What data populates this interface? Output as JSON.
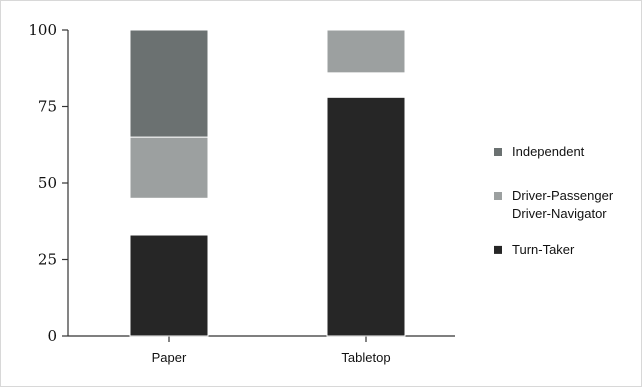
{
  "chart_data": {
    "type": "bar",
    "stacked": true,
    "categories": [
      "Paper",
      "Tabletop"
    ],
    "ylim": [
      0,
      100
    ],
    "yticks": [
      "0",
      "25",
      "50",
      "75",
      "100"
    ],
    "series": [
      {
        "name": "Turn-Taker",
        "color": "#262626",
        "values": [
          [
            0,
            33
          ],
          [
            0,
            78
          ]
        ]
      },
      {
        "name": "Driver-Passenger Driver-Navigator",
        "color": "#9ca0a0",
        "values": [
          [
            45,
            65
          ],
          [
            86,
            100
          ]
        ]
      },
      {
        "name": "Independent",
        "color": "#6b7171",
        "values": [
          [
            65,
            100
          ],
          null
        ]
      }
    ],
    "legend": {
      "position": "right",
      "items": [
        {
          "label": "Independent",
          "color": "#6b7171",
          "lines": [
            "Independent"
          ]
        },
        {
          "label": "Driver-Passenger Driver-Navigator",
          "color": "#9ca0a0",
          "lines": [
            "Driver-Passenger",
            "Driver-Navigator"
          ]
        },
        {
          "label": "Turn-Taker",
          "color": "#262626",
          "lines": [
            "Turn-Taker"
          ]
        }
      ]
    },
    "title": "",
    "xlabel": "",
    "ylabel": ""
  }
}
